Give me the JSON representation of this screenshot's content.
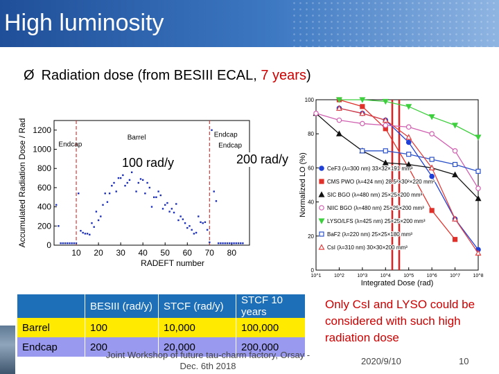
{
  "title": "High luminosity",
  "bullet": {
    "marker": "Ø",
    "text_before": "Radiation dose (from BESIII ECAL, ",
    "text_red": "7 years",
    "text_after": ")"
  },
  "dose_labels": {
    "barrel": "100 rad/y",
    "endcap": "200 rad/y"
  },
  "chart_data": [
    {
      "type": "scatter",
      "title": "",
      "xlabel": "RADEFT number",
      "ylabel": "Accumulated Radiation Dose / Rad",
      "xlim": [
        0,
        88
      ],
      "ylim": [
        0,
        1300
      ],
      "xticks": [
        "10",
        "20",
        "30",
        "40",
        "50",
        "60",
        "70",
        "80"
      ],
      "yticks": [
        "0",
        "200",
        "400",
        "600",
        "800",
        "1000",
        "1200"
      ],
      "region_labels": [
        "Endcap",
        "Barrel",
        "Endcap",
        "Endcap"
      ],
      "boundaries": [
        10,
        70
      ],
      "x": [
        1,
        2,
        3,
        4,
        5,
        6,
        7,
        8,
        9,
        10,
        11,
        12,
        13,
        14,
        15,
        16,
        17,
        18,
        19,
        20,
        21,
        22,
        23,
        24,
        25,
        26,
        27,
        28,
        29,
        30,
        31,
        32,
        33,
        34,
        35,
        36,
        37,
        38,
        39,
        40,
        41,
        42,
        43,
        44,
        45,
        46,
        47,
        48,
        49,
        50,
        51,
        52,
        53,
        54,
        55,
        56,
        57,
        58,
        59,
        60,
        61,
        62,
        63,
        64,
        65,
        66,
        67,
        68,
        69,
        70,
        71,
        72,
        73,
        74,
        75,
        76,
        77,
        78,
        79,
        80,
        81,
        82,
        83,
        84,
        85
      ],
      "y": [
        420,
        200,
        20,
        20,
        20,
        20,
        20,
        20,
        20,
        20,
        540,
        150,
        130,
        120,
        120,
        110,
        230,
        190,
        350,
        260,
        300,
        420,
        540,
        450,
        540,
        620,
        650,
        560,
        700,
        700,
        730,
        620,
        650,
        680,
        760,
        820,
        560,
        650,
        690,
        680,
        540,
        650,
        600,
        400,
        500,
        500,
        560,
        520,
        380,
        420,
        440,
        350,
        380,
        340,
        430,
        260,
        300,
        270,
        230,
        180,
        200,
        160,
        120,
        130,
        300,
        240,
        230,
        240,
        160,
        30,
        1200,
        560,
        460,
        20,
        20,
        20,
        20,
        20,
        20,
        20,
        20,
        20,
        20,
        20,
        20
      ]
    },
    {
      "type": "line",
      "title": "",
      "xlabel": "Integrated Dose (rad)",
      "ylabel": "Normalized LO (%)",
      "xlog": true,
      "xlim": [
        10,
        100000000
      ],
      "ylim": [
        0,
        100
      ],
      "xticks": [
        "10^1",
        "10^2",
        "10^3",
        "10^4",
        "10^5",
        "10^6",
        "10^7",
        "10^8"
      ],
      "yticks": [
        "0",
        "20",
        "40",
        "60",
        "80",
        "100"
      ],
      "x": [
        10,
        100,
        1000,
        10000,
        100000,
        1000000,
        10000000,
        100000000
      ],
      "series": [
        {
          "name": "CeF3 (λ=300 nm) 33×32×191 mm³",
          "color": "#1f3fd6",
          "marker": "circle",
          "values": [
            null,
            95,
            92,
            88,
            75,
            55,
            30,
            12
          ]
        },
        {
          "name": "CMS PWO (λ=424 nm) 28.5²×30²×220 mm³",
          "color": "#e0302a",
          "marker": "square",
          "values": [
            null,
            100,
            96,
            83,
            60,
            35,
            18,
            null
          ]
        },
        {
          "name": "SIC BGO (λ=480 nm) 25×25×200 mm³",
          "color": "#111111",
          "marker": "triangle",
          "values": [
            92,
            80,
            70,
            63,
            62,
            60,
            56,
            42
          ]
        },
        {
          "name": "NIIC BGO (λ=480 nm) 25×25×200 mm³",
          "color": "#d060b0",
          "marker": "circle-open",
          "values": [
            92,
            88,
            86,
            85,
            84,
            80,
            70,
            48
          ]
        },
        {
          "name": "LYSO/LFS (λ=425 nm) 25×25×200 mm³",
          "color": "#3ecf3e",
          "marker": "triangle-down",
          "values": [
            null,
            100,
            100,
            99,
            96,
            90,
            85,
            78
          ]
        },
        {
          "name": "BaF2 (λ=220 nm) 25×25×180 mm³",
          "color": "#2a50c8",
          "marker": "square-open",
          "values": [
            null,
            null,
            70,
            70,
            68,
            65,
            62,
            58
          ]
        },
        {
          "name": "CsI (λ=310 nm) 30×30×200 mm³",
          "color": "#e04040",
          "marker": "triangle-open",
          "values": [
            null,
            95,
            92,
            88,
            78,
            60,
            30,
            10
          ]
        }
      ]
    }
  ],
  "table": {
    "headers": [
      "",
      "BESIII (rad/y)",
      "STCF (rad/y)",
      "STCF 10 years"
    ],
    "rows": [
      [
        "Barrel",
        "100",
        "10,000",
        "100,000"
      ],
      [
        "Endcap",
        "200",
        "20,000",
        "200,000"
      ]
    ]
  },
  "note": "Only CsI and LYSO could be considered with such high radiation dose",
  "footer": {
    "line1": "Joint Workshop of future tau-charm factory, Orsay -",
    "line2": "Dec. 6th 2018",
    "date": "2020/9/10",
    "page": "10"
  },
  "colors": {
    "title_bg": "#2a60ad",
    "accent_red": "#cc0000",
    "table_header": "#1d6fb8",
    "table_barrel": "#ffea00",
    "table_endcap": "#9999f0"
  }
}
